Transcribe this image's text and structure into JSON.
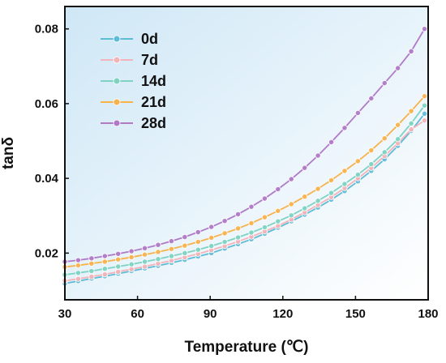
{
  "chart_data": {
    "type": "line",
    "xlabel": "Temperature (℃)",
    "ylabel": "tanδ",
    "xlim": [
      30,
      180
    ],
    "ylim": [
      0.0075,
      0.086
    ],
    "xticks": [
      30,
      60,
      90,
      120,
      150,
      180
    ],
    "yticks": [
      0.02,
      0.04,
      0.06,
      0.08
    ],
    "ytick_labels": [
      "0.02",
      "0.04",
      "0.06",
      "0.08"
    ],
    "grid": false,
    "legend_position": "top-left",
    "background_gradient": [
      "#cfe7f6",
      "#ffffff"
    ],
    "series": [
      {
        "name": "0d",
        "color": "#5fbcd6",
        "x": [
          30,
          35.5,
          41,
          46.5,
          52,
          57.5,
          63,
          68.5,
          74,
          79.5,
          85,
          90.5,
          96,
          101.5,
          107,
          112.5,
          118,
          123.5,
          129,
          134.5,
          140,
          145.5,
          151,
          156.5,
          162,
          167.5,
          173,
          178.5
        ],
        "y": [
          0.0119,
          0.0125,
          0.0132,
          0.0138,
          0.0145,
          0.0152,
          0.0159,
          0.0166,
          0.0174,
          0.0182,
          0.0191,
          0.02,
          0.0212,
          0.0224,
          0.0237,
          0.0252,
          0.0268,
          0.0285,
          0.0303,
          0.0322,
          0.0343,
          0.0366,
          0.0392,
          0.042,
          0.0451,
          0.0487,
          0.0527,
          0.0573
        ]
      },
      {
        "name": "7d",
        "color": "#f3b4b9",
        "x": [
          30,
          35.5,
          41,
          46.5,
          52,
          57.5,
          63,
          68.5,
          74,
          79.5,
          85,
          90.5,
          96,
          101.5,
          107,
          112.5,
          118,
          123.5,
          129,
          134.5,
          140,
          145.5,
          151,
          156.5,
          162,
          167.5,
          173,
          178.5
        ],
        "y": [
          0.0126,
          0.0131,
          0.0137,
          0.0143,
          0.015,
          0.0157,
          0.0164,
          0.0172,
          0.018,
          0.0189,
          0.0198,
          0.0208,
          0.0219,
          0.0231,
          0.0244,
          0.0258,
          0.0273,
          0.029,
          0.0309,
          0.0329,
          0.035,
          0.0374,
          0.04,
          0.0428,
          0.046,
          0.0494,
          0.0531,
          0.0555
        ]
      },
      {
        "name": "14d",
        "color": "#7ed3c2",
        "x": [
          30,
          35.5,
          41,
          46.5,
          52,
          57.5,
          63,
          68.5,
          74,
          79.5,
          85,
          90.5,
          96,
          101.5,
          107,
          112.5,
          118,
          123.5,
          129,
          134.5,
          140,
          145.5,
          151,
          156.5,
          162,
          167.5,
          173,
          178.5
        ],
        "y": [
          0.0142,
          0.0147,
          0.0152,
          0.0158,
          0.0164,
          0.017,
          0.0177,
          0.0184,
          0.0192,
          0.02,
          0.0209,
          0.0219,
          0.023,
          0.0242,
          0.0255,
          0.0269,
          0.0285,
          0.0301,
          0.032,
          0.034,
          0.0361,
          0.0385,
          0.041,
          0.0438,
          0.047,
          0.0505,
          0.0547,
          0.0595
        ]
      },
      {
        "name": "21d",
        "color": "#f7b24c",
        "x": [
          30,
          35.5,
          41,
          46.5,
          52,
          57.5,
          63,
          68.5,
          74,
          79.5,
          85,
          90.5,
          96,
          101.5,
          107,
          112.5,
          118,
          123.5,
          129,
          134.5,
          140,
          145.5,
          151,
          156.5,
          162,
          167.5,
          173,
          178.5
        ],
        "y": [
          0.0163,
          0.0167,
          0.0172,
          0.0177,
          0.0183,
          0.0189,
          0.0196,
          0.0203,
          0.0211,
          0.022,
          0.023,
          0.0241,
          0.0253,
          0.0266,
          0.028,
          0.0296,
          0.0313,
          0.0331,
          0.0351,
          0.0372,
          0.0395,
          0.042,
          0.0446,
          0.0475,
          0.0507,
          0.0543,
          0.058,
          0.062
        ]
      },
      {
        "name": "28d",
        "color": "#b07ac7",
        "x": [
          30,
          35.5,
          41,
          46.5,
          52,
          57.5,
          63,
          68.5,
          74,
          79.5,
          85,
          90.5,
          96,
          101.5,
          107,
          112.5,
          118,
          123.5,
          129,
          134.5,
          140,
          145.5,
          151,
          156.5,
          162,
          167.5,
          173,
          178.5
        ],
        "y": [
          0.0177,
          0.0181,
          0.0186,
          0.0192,
          0.0198,
          0.0205,
          0.0213,
          0.0222,
          0.0232,
          0.0243,
          0.0256,
          0.027,
          0.0286,
          0.0304,
          0.0324,
          0.0346,
          0.0371,
          0.0398,
          0.0428,
          0.0461,
          0.0497,
          0.0535,
          0.0575,
          0.0614,
          0.0655,
          0.0695,
          0.074,
          0.08
        ]
      }
    ]
  }
}
